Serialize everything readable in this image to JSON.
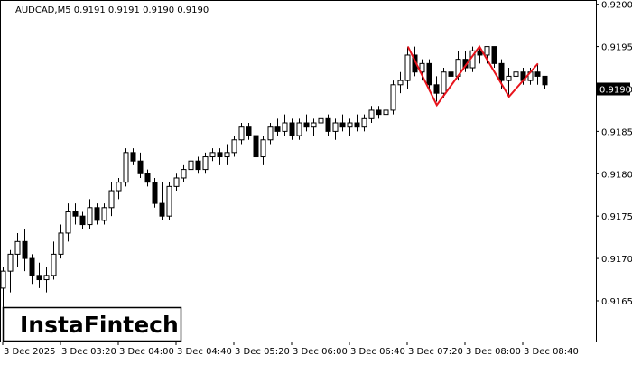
{
  "chart_data": {
    "type": "candlestick",
    "title": "AUDCAD,M5  0.9191 0.9191 0.9190 0.9190",
    "logo": "InstaFintech",
    "categories": [
      "3 Dec 2025",
      null,
      null,
      null,
      null,
      null,
      null,
      null,
      "3 Dec 03:20",
      null,
      null,
      null,
      null,
      null,
      null,
      null,
      "3 Dec 04:00",
      null,
      null,
      null,
      null,
      null,
      null,
      null,
      "3 Dec 04:40",
      null,
      null,
      null,
      null,
      null,
      null,
      null,
      "3 Dec 05:20",
      null,
      null,
      null,
      null,
      null,
      null,
      null,
      "3 Dec 06:00",
      null,
      null,
      null,
      null,
      null,
      null,
      null,
      "3 Dec 06:40",
      null,
      null,
      null,
      null,
      null,
      null,
      null,
      "3 Dec 07:20",
      null,
      null,
      null,
      null,
      null,
      null,
      null,
      "3 Dec 08:00",
      null,
      null,
      null,
      null,
      null,
      null,
      null,
      "3 Dec 08:40",
      null,
      null,
      null
    ],
    "open": [
      0.91665,
      0.91685,
      0.91705,
      0.9172,
      0.917,
      0.9168,
      0.91675,
      0.9168,
      0.91705,
      0.9173,
      0.91755,
      0.9175,
      0.9174,
      0.9176,
      0.91745,
      0.9176,
      0.9178,
      0.9179,
      0.91825,
      0.91815,
      0.918,
      0.9179,
      0.91765,
      0.9175,
      0.91785,
      0.91795,
      0.91805,
      0.91815,
      0.91805,
      0.9182,
      0.91825,
      0.9182,
      0.91825,
      0.9184,
      0.91855,
      0.91845,
      0.9182,
      0.9184,
      0.91855,
      0.9185,
      0.9186,
      0.91845,
      0.9186,
      0.91855,
      0.9186,
      0.91865,
      0.9185,
      0.9186,
      0.91855,
      0.9186,
      0.91855,
      0.91865,
      0.91875,
      0.9187,
      0.91875,
      0.91905,
      0.9191,
      0.9194,
      0.9192,
      0.9193,
      0.91905,
      0.91895,
      0.9192,
      0.91915,
      0.91935,
      0.91925,
      0.91945,
      0.9194,
      0.9195,
      0.9193,
      0.9191,
      0.91915,
      0.9192,
      0.9191,
      0.9192,
      0.91915
    ],
    "high": [
      0.9169,
      0.9171,
      0.9173,
      0.91735,
      0.91705,
      0.91695,
      0.9169,
      0.9172,
      0.9174,
      0.91765,
      0.91765,
      0.91755,
      0.9177,
      0.91765,
      0.91765,
      0.9179,
      0.91795,
      0.9183,
      0.9183,
      0.91825,
      0.91805,
      0.91795,
      0.9179,
      0.9179,
      0.918,
      0.9181,
      0.9182,
      0.9182,
      0.91825,
      0.9183,
      0.9183,
      0.91835,
      0.91845,
      0.9186,
      0.9186,
      0.9185,
      0.91845,
      0.9186,
      0.91865,
      0.9187,
      0.91865,
      0.91865,
      0.9187,
      0.91865,
      0.9187,
      0.9187,
      0.91865,
      0.9187,
      0.91865,
      0.9187,
      0.9187,
      0.9188,
      0.9188,
      0.9188,
      0.9191,
      0.9192,
      0.9195,
      0.9195,
      0.91935,
      0.91935,
      0.91915,
      0.91925,
      0.9193,
      0.91945,
      0.91945,
      0.9195,
      0.9195,
      0.9195,
      0.9195,
      0.91935,
      0.91925,
      0.91925,
      0.91925,
      0.91925,
      0.9193,
      0.91915
    ],
    "low": [
      0.9163,
      0.9166,
      0.9169,
      0.91685,
      0.9167,
      0.91665,
      0.9166,
      0.91675,
      0.917,
      0.9172,
      0.9174,
      0.91735,
      0.91735,
      0.9174,
      0.9174,
      0.9175,
      0.9177,
      0.91785,
      0.9181,
      0.91795,
      0.91785,
      0.9176,
      0.91745,
      0.91745,
      0.9178,
      0.9179,
      0.91795,
      0.918,
      0.918,
      0.91815,
      0.9181,
      0.9181,
      0.9182,
      0.91835,
      0.9184,
      0.91815,
      0.9181,
      0.91835,
      0.91845,
      0.91845,
      0.9184,
      0.9184,
      0.9185,
      0.91845,
      0.9185,
      0.91845,
      0.9184,
      0.9185,
      0.91845,
      0.9185,
      0.9185,
      0.9186,
      0.91865,
      0.91865,
      0.9187,
      0.91895,
      0.919,
      0.91915,
      0.9191,
      0.919,
      0.91885,
      0.9189,
      0.91905,
      0.9191,
      0.9192,
      0.9192,
      0.9193,
      0.9193,
      0.91925,
      0.919,
      0.9189,
      0.919,
      0.91905,
      0.91905,
      0.91905,
      0.919
    ],
    "close": [
      0.91685,
      0.91705,
      0.9172,
      0.917,
      0.9168,
      0.91675,
      0.9168,
      0.91705,
      0.9173,
      0.91755,
      0.9175,
      0.9174,
      0.9176,
      0.91745,
      0.9176,
      0.9178,
      0.9179,
      0.91825,
      0.91815,
      0.918,
      0.9179,
      0.91765,
      0.9175,
      0.91785,
      0.91795,
      0.91805,
      0.91815,
      0.91805,
      0.9182,
      0.91825,
      0.9182,
      0.91825,
      0.9184,
      0.91855,
      0.91845,
      0.9182,
      0.9184,
      0.91855,
      0.9185,
      0.9186,
      0.91845,
      0.9186,
      0.91855,
      0.9186,
      0.91865,
      0.9185,
      0.9186,
      0.91855,
      0.9186,
      0.91855,
      0.91865,
      0.91875,
      0.9187,
      0.91875,
      0.91905,
      0.9191,
      0.9194,
      0.9192,
      0.9193,
      0.91905,
      0.91895,
      0.9192,
      0.91915,
      0.91935,
      0.91925,
      0.91945,
      0.9194,
      0.9195,
      0.9193,
      0.9191,
      0.91915,
      0.9192,
      0.9191,
      0.9192,
      0.91915,
      0.91905
    ],
    "up_color": "#ffffff",
    "down_color": "#000000",
    "ylim": [
      0.91602,
      0.92005
    ],
    "yticks": [
      {
        "value": 0.9165,
        "label": "0.9165"
      },
      {
        "value": 0.917,
        "label": "0.9170"
      },
      0.9175,
      {
        "value": 0.918,
        "label": "0.9180"
      },
      0.9185,
      {
        "value": 0.919,
        "label": "0.9190"
      },
      0.9195,
      {
        "value": 0.92,
        "label": "0.9200"
      }
    ],
    "current_price": {
      "value": 0.919,
      "label": "0.9190"
    },
    "pattern": {
      "color": "#e8141c",
      "x": [
        56.1,
        60.1,
        66,
        70.1,
        74.1
      ],
      "values": [
        0.9195,
        0.91881,
        0.9195,
        0.91891,
        0.9193
      ]
    }
  }
}
